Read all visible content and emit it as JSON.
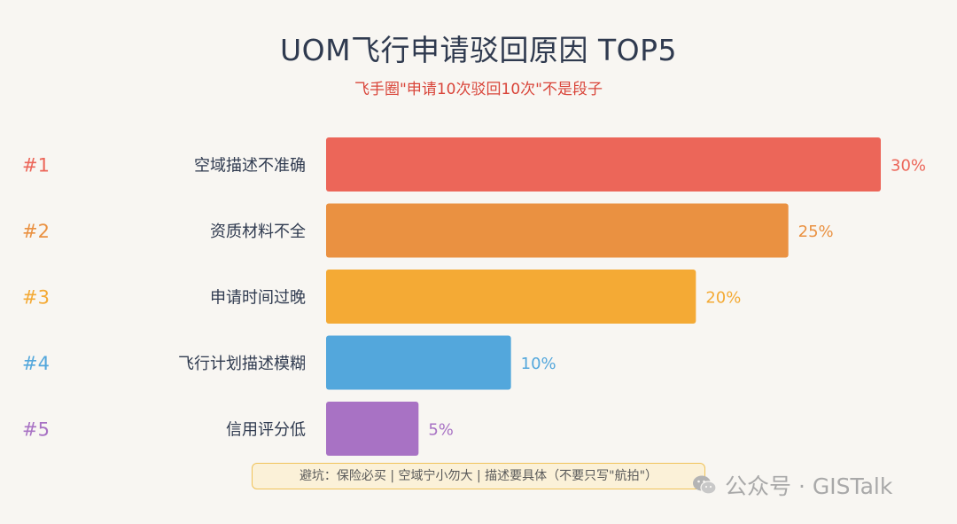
{
  "title": "UOM飞行申请驳回原因 TOP5",
  "subtitle": "飞手圈\"申请10次驳回10次\"不是段子",
  "footnote": "避坑：保险必买 | 空域宁小勿大 | 描述要具体（不要只写\"航拍\"）",
  "watermark": {
    "icon": "wechat-icon",
    "text": "公众号 · GISTalk"
  },
  "chart_data": {
    "type": "bar",
    "orientation": "horizontal",
    "title": "UOM飞行申请驳回原因 TOP5",
    "subtitle": "飞手圈\"申请10次驳回10次\"不是段子",
    "ranks": [
      "#1",
      "#2",
      "#3",
      "#4",
      "#5"
    ],
    "categories": [
      "空域描述不准确",
      "资质材料不全",
      "申请时间过晚",
      "飞行计划描述模糊",
      "信用评分低"
    ],
    "values": [
      30,
      25,
      20,
      10,
      5
    ],
    "value_labels": [
      "30%",
      "25%",
      "20%",
      "10%",
      "5%"
    ],
    "colors": [
      "#ec6659",
      "#ea9141",
      "#f4aa35",
      "#53a7dc",
      "#a872c4"
    ],
    "unit": "%",
    "xlim": [
      0,
      30
    ],
    "grid": false,
    "legend": "none"
  }
}
